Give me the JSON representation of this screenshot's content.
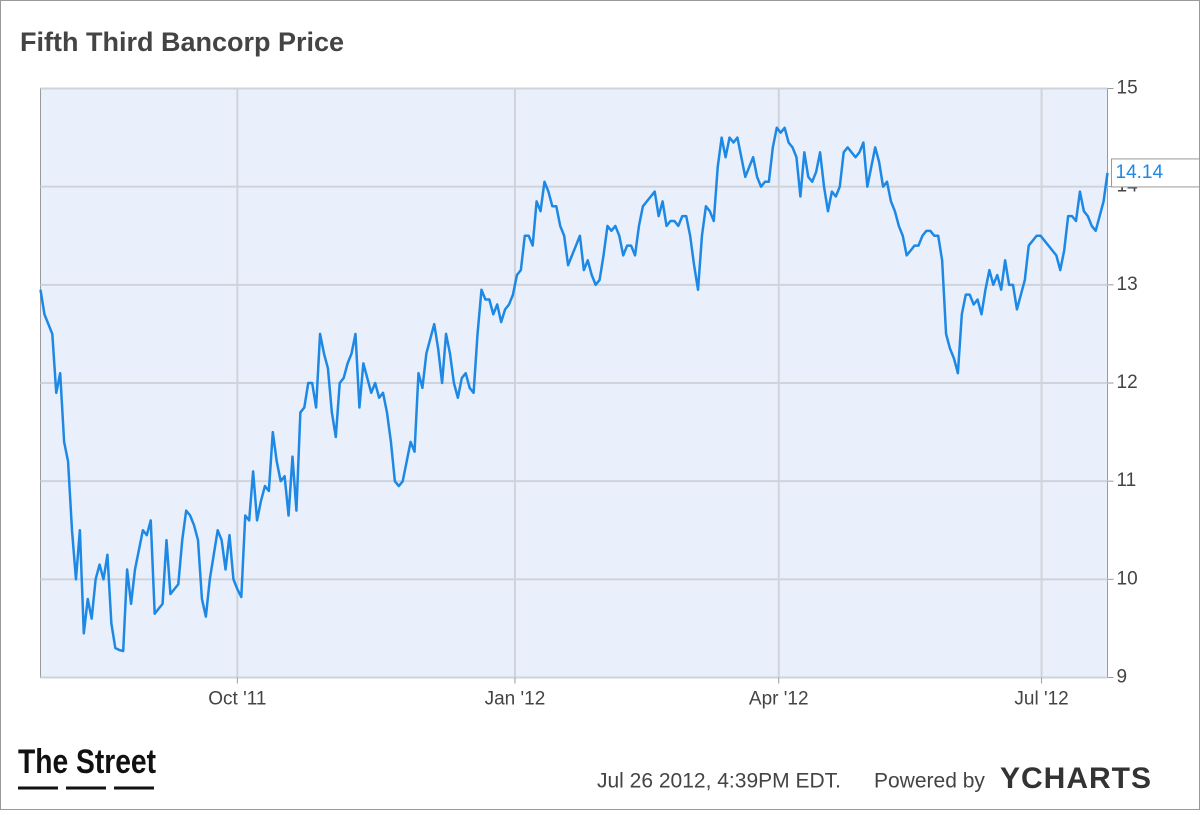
{
  "chart_data": {
    "type": "line",
    "title": "Fifth Third Bancorp Price",
    "color": "#1e88e5",
    "grid": true,
    "ylim": [
      9,
      15
    ],
    "yticks": [
      9,
      10,
      11,
      12,
      13,
      14,
      15
    ],
    "xlim": [
      0,
      271
    ],
    "xticks": [
      {
        "value": 50,
        "label": "Oct '11"
      },
      {
        "value": 120.5,
        "label": "Jan '12"
      },
      {
        "value": 187.5,
        "label": "Apr '12"
      },
      {
        "value": 254.25,
        "label": "Jul '12"
      }
    ],
    "values": [
      12.95,
      12.7,
      12.6,
      12.5,
      11.9,
      12.1,
      11.4,
      11.2,
      10.5,
      10.0,
      10.5,
      9.45,
      9.8,
      9.6,
      10.0,
      10.15,
      10.0,
      10.25,
      9.55,
      9.3,
      9.28,
      9.27,
      10.1,
      9.75,
      10.1,
      10.3,
      10.5,
      10.45,
      10.6,
      9.65,
      9.7,
      9.75,
      10.4,
      9.85,
      9.9,
      9.95,
      10.4,
      10.7,
      10.65,
      10.55,
      10.4,
      9.8,
      9.62,
      10.0,
      10.25,
      10.5,
      10.4,
      10.1,
      10.45,
      10.0,
      9.9,
      9.82,
      10.65,
      10.6,
      11.1,
      10.6,
      10.8,
      10.95,
      10.9,
      11.5,
      11.2,
      11.0,
      11.05,
      10.65,
      11.25,
      10.7,
      11.7,
      11.75,
      12.0,
      12.0,
      11.75,
      12.5,
      12.3,
      12.15,
      11.7,
      11.45,
      12.0,
      12.05,
      12.2,
      12.3,
      12.5,
      11.75,
      12.2,
      12.05,
      11.9,
      12.0,
      11.85,
      11.9,
      11.7,
      11.4,
      11.0,
      10.95,
      11.0,
      11.2,
      11.4,
      11.3,
      12.1,
      11.95,
      12.3,
      12.45,
      12.6,
      12.35,
      12.0,
      12.5,
      12.3,
      12.0,
      11.85,
      12.05,
      12.1,
      11.95,
      11.9,
      12.5,
      12.95,
      12.85,
      12.85,
      12.7,
      12.8,
      12.62,
      12.75,
      12.8,
      12.9,
      13.1,
      13.15,
      13.5,
      13.5,
      13.4,
      13.85,
      13.75,
      14.05,
      13.95,
      13.8,
      13.8,
      13.6,
      13.5,
      13.2,
      13.3,
      13.4,
      13.5,
      13.15,
      13.25,
      13.1,
      13.0,
      13.05,
      13.3,
      13.6,
      13.55,
      13.6,
      13.5,
      13.3,
      13.4,
      13.4,
      13.3,
      13.6,
      13.8,
      13.85,
      13.9,
      13.95,
      13.7,
      13.85,
      13.6,
      13.65,
      13.65,
      13.6,
      13.7,
      13.7,
      13.5,
      13.2,
      12.95,
      13.5,
      13.8,
      13.75,
      13.65,
      14.2,
      14.5,
      14.3,
      14.5,
      14.45,
      14.5,
      14.3,
      14.1,
      14.2,
      14.3,
      14.1,
      14.0,
      14.05,
      14.05,
      14.4,
      14.6,
      14.55,
      14.6,
      14.45,
      14.4,
      14.3,
      13.9,
      14.35,
      14.1,
      14.05,
      14.15,
      14.35,
      14.0,
      13.75,
      13.95,
      13.9,
      14.0,
      14.35,
      14.4,
      14.35,
      14.3,
      14.35,
      14.45,
      14.0,
      14.2,
      14.4,
      14.25,
      14.0,
      14.05,
      13.85,
      13.75,
      13.6,
      13.5,
      13.3,
      13.35,
      13.4,
      13.4,
      13.5,
      13.55,
      13.55,
      13.5,
      13.5,
      13.25,
      12.5,
      12.35,
      12.25,
      12.1,
      12.7,
      12.9,
      12.9,
      12.8,
      12.85,
      12.7,
      12.95,
      13.15,
      13.0,
      13.1,
      12.95,
      13.25,
      13.0,
      13.0,
      12.75,
      12.9,
      13.05,
      13.4,
      13.45,
      13.5,
      13.5,
      13.45,
      13.4,
      13.35,
      13.3,
      13.15,
      13.35,
      13.7,
      13.7,
      13.65,
      13.95,
      13.75,
      13.7,
      13.6,
      13.55,
      13.7,
      13.85,
      14.14
    ],
    "logo": "The Street",
    "timestamp": "Jul 26 2012, 4:39PM EDT.",
    "powered_by": "Powered by",
    "brand": "YCHARTS"
  }
}
